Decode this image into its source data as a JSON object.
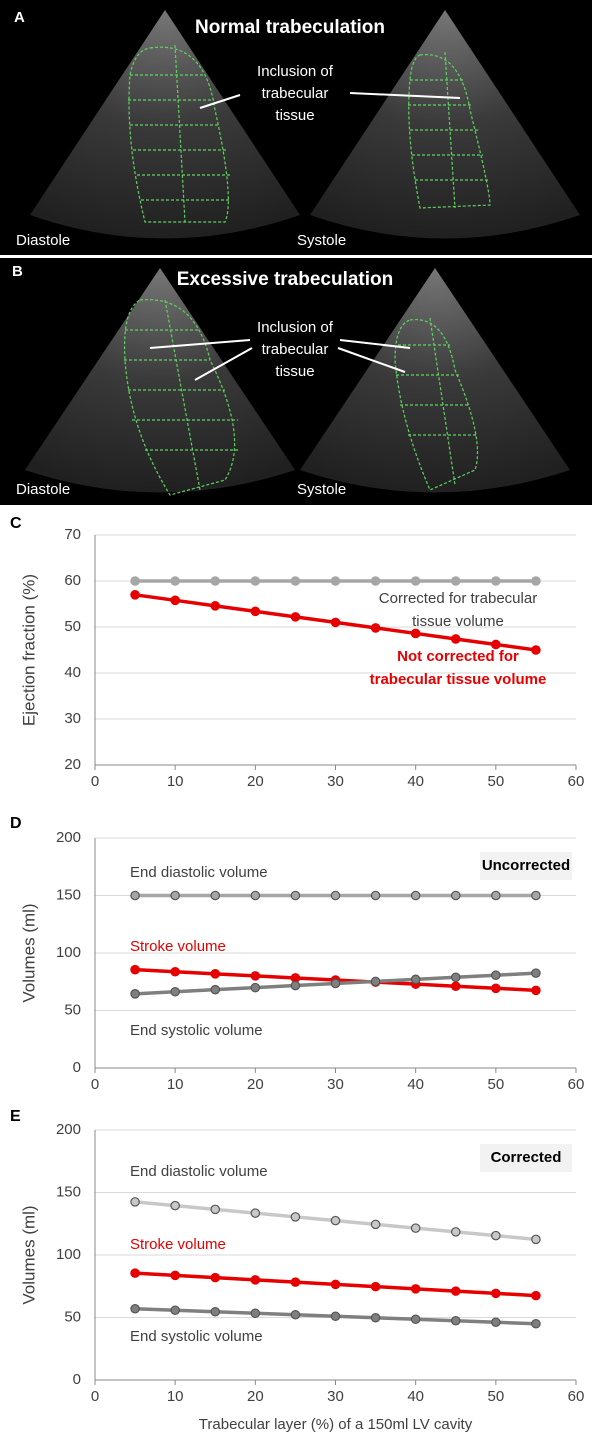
{
  "panels": [
    {
      "letter": "A",
      "title": "Normal trabeculation",
      "note": [
        "Inclusion of",
        "trabecular",
        "tissue"
      ],
      "left": "Diastole",
      "right": "Systole"
    },
    {
      "letter": "B",
      "title": "Excessive trabeculation",
      "note": [
        "Inclusion of",
        "trabecular",
        "tissue"
      ],
      "left": "Diastole",
      "right": "Systole"
    }
  ],
  "chart_data": [
    {
      "type": "line",
      "panel": "C",
      "ylabel": "Ejection fraction (%)",
      "x": [
        5,
        10,
        15,
        20,
        25,
        30,
        35,
        40,
        45,
        50,
        55
      ],
      "series": [
        {
          "color": "#a6a6a6",
          "values": [
            60,
            60,
            60,
            60,
            60,
            60,
            60,
            60,
            60,
            60,
            60
          ]
        },
        {
          "color": "#e60000",
          "values": [
            57,
            55.8,
            54.6,
            53.4,
            52.2,
            51,
            49.8,
            48.6,
            47.4,
            46.2,
            45
          ]
        }
      ],
      "annotations": [
        {
          "lines": [
            "Corrected for trabecular",
            "tissue volume"
          ],
          "color": "#404040",
          "bold": false
        },
        {
          "lines": [
            "Not corrected for",
            "trabecular tissue volume"
          ],
          "color": "#e60000",
          "bold": true
        }
      ],
      "xlim": [
        0,
        60
      ],
      "xticks": [
        0,
        10,
        20,
        30,
        40,
        50,
        60
      ],
      "ylim": [
        20,
        70
      ],
      "yticks": [
        20,
        30,
        40,
        50,
        60,
        70
      ],
      "grid": true
    },
    {
      "type": "line",
      "panel": "D",
      "ylabel": "Volumes (ml)",
      "tag": "Uncorrected",
      "x": [
        5,
        10,
        15,
        20,
        25,
        30,
        35,
        40,
        45,
        50,
        55
      ],
      "series": [
        {
          "color": "#a6a6a6",
          "values": [
            150,
            150,
            150,
            150,
            150,
            150,
            150,
            150,
            150,
            150,
            150
          ]
        },
        {
          "color": "#e60000",
          "values": [
            85.5,
            83.7,
            81.9,
            80.1,
            78.3,
            76.5,
            74.7,
            72.9,
            71.1,
            69.3,
            67.5
          ]
        },
        {
          "color": "#7f7f7f",
          "values": [
            64.5,
            66.3,
            68.1,
            69.9,
            71.7,
            73.5,
            75.3,
            77.1,
            78.9,
            80.7,
            82.5
          ]
        }
      ],
      "annotations": [
        {
          "lines": [
            "End diastolic volume"
          ],
          "color": "#404040",
          "bold": false
        },
        {
          "lines": [
            "Stroke volume"
          ],
          "color": "#e60000",
          "bold": false
        },
        {
          "lines": [
            "End systolic volume"
          ],
          "color": "#404040",
          "bold": false
        }
      ],
      "xlim": [
        0,
        60
      ],
      "xticks": [
        0,
        10,
        20,
        30,
        40,
        50,
        60
      ],
      "ylim": [
        0,
        200
      ],
      "yticks": [
        0,
        50,
        100,
        150,
        200
      ],
      "grid": true
    },
    {
      "type": "line",
      "panel": "E",
      "ylabel": "Volumes (ml)",
      "tag": "Corrected",
      "xlabel": "Trabecular layer (%) of a 150ml LV cavity",
      "x": [
        5,
        10,
        15,
        20,
        25,
        30,
        35,
        40,
        45,
        50,
        55
      ],
      "series": [
        {
          "color": "#c8c8c8",
          "values": [
            142.5,
            139.5,
            136.5,
            133.5,
            130.5,
            127.5,
            124.5,
            121.5,
            118.5,
            115.5,
            112.5
          ]
        },
        {
          "color": "#e60000",
          "values": [
            85.5,
            83.7,
            81.9,
            80.1,
            78.3,
            76.5,
            74.7,
            72.9,
            71.1,
            69.3,
            67.5
          ]
        },
        {
          "color": "#7f7f7f",
          "values": [
            57,
            55.8,
            54.6,
            53.4,
            52.2,
            51,
            49.8,
            48.6,
            47.4,
            46.2,
            45
          ]
        }
      ],
      "annotations": [
        {
          "lines": [
            "End diastolic volume"
          ],
          "color": "#404040",
          "bold": false
        },
        {
          "lines": [
            "Stroke volume"
          ],
          "color": "#e60000",
          "bold": false
        },
        {
          "lines": [
            "End systolic volume"
          ],
          "color": "#404040",
          "bold": false
        }
      ],
      "xlim": [
        0,
        60
      ],
      "xticks": [
        0,
        10,
        20,
        30,
        40,
        50,
        60
      ],
      "ylim": [
        0,
        200
      ],
      "yticks": [
        0,
        50,
        100,
        150,
        200
      ],
      "grid": true
    }
  ]
}
